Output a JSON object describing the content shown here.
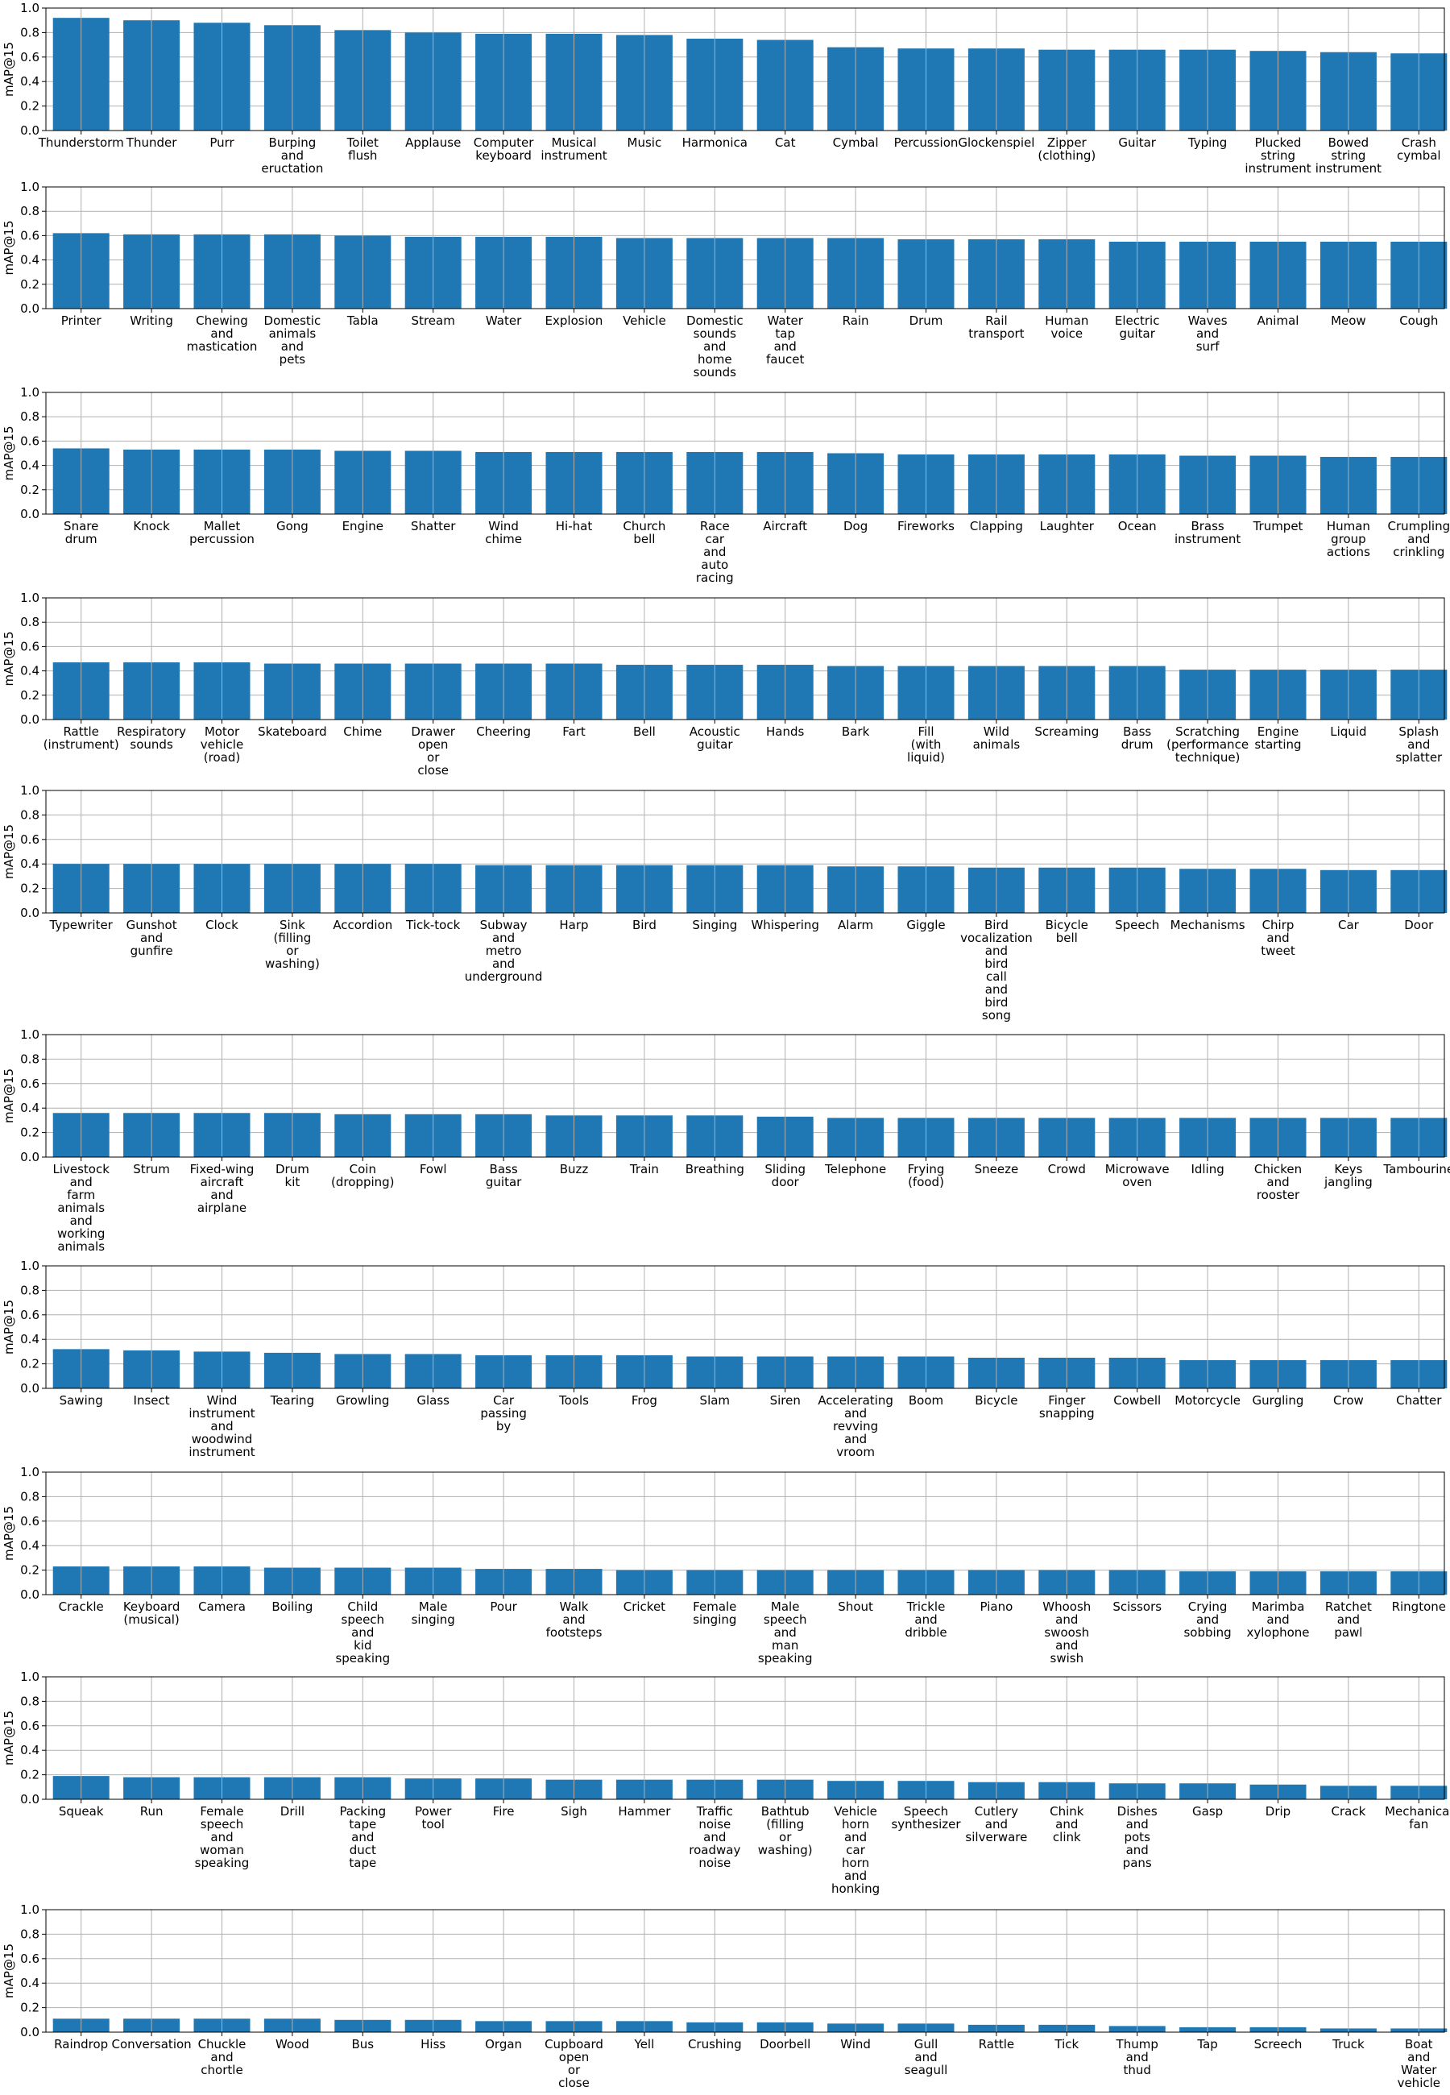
{
  "chart_data": [
    {
      "type": "bar",
      "ylabel": "mAP@15",
      "ylim": [
        0,
        1
      ],
      "yticks": [
        "0.0",
        "0.2",
        "0.4",
        "0.6",
        "0.8",
        "1.0"
      ],
      "grid": true,
      "categories": [
        "Thunderstorm",
        "Thunder",
        "Purr",
        "Burping\nand\neructation",
        "Toilet\nflush",
        "Applause",
        "Computer\nkeyboard",
        "Musical\ninstrument",
        "Music",
        "Harmonica",
        "Cat",
        "Cymbal",
        "Percussion",
        "Glockenspiel",
        "Zipper\n(clothing)",
        "Guitar",
        "Typing",
        "Plucked\nstring\ninstrument",
        "Bowed\nstring\ninstrument",
        "Crash\ncymbal"
      ],
      "values": [
        0.92,
        0.9,
        0.88,
        0.86,
        0.82,
        0.8,
        0.79,
        0.79,
        0.78,
        0.75,
        0.74,
        0.68,
        0.67,
        0.67,
        0.66,
        0.66,
        0.66,
        0.65,
        0.64,
        0.63
      ]
    },
    {
      "type": "bar",
      "ylabel": "mAP@15",
      "ylim": [
        0,
        1
      ],
      "yticks": [
        "0.0",
        "0.2",
        "0.4",
        "0.6",
        "0.8",
        "1.0"
      ],
      "grid": true,
      "categories": [
        "Printer",
        "Writing",
        "Chewing\nand\nmastication",
        "Domestic\nanimals\nand\npets",
        "Tabla",
        "Stream",
        "Water",
        "Explosion",
        "Vehicle",
        "Domestic\nsounds\nand\nhome\nsounds",
        "Water\ntap\nand\nfaucet",
        "Rain",
        "Drum",
        "Rail\ntransport",
        "Human\nvoice",
        "Electric\nguitar",
        "Waves\nand\nsurf",
        "Animal",
        "Meow",
        "Cough"
      ],
      "values": [
        0.62,
        0.61,
        0.61,
        0.61,
        0.6,
        0.59,
        0.59,
        0.59,
        0.58,
        0.58,
        0.58,
        0.58,
        0.57,
        0.57,
        0.57,
        0.55,
        0.55,
        0.55,
        0.55,
        0.55
      ]
    },
    {
      "type": "bar",
      "ylabel": "mAP@15",
      "ylim": [
        0,
        1
      ],
      "yticks": [
        "0.0",
        "0.2",
        "0.4",
        "0.6",
        "0.8",
        "1.0"
      ],
      "grid": true,
      "categories": [
        "Snare\ndrum",
        "Knock",
        "Mallet\npercussion",
        "Gong",
        "Engine",
        "Shatter",
        "Wind\nchime",
        "Hi-hat",
        "Church\nbell",
        "Race\ncar\nand\nauto\nracing",
        "Aircraft",
        "Dog",
        "Fireworks",
        "Clapping",
        "Laughter",
        "Ocean",
        "Brass\ninstrument",
        "Trumpet",
        "Human\ngroup\nactions",
        "Crumpling\nand\ncrinkling"
      ],
      "values": [
        0.54,
        0.53,
        0.53,
        0.53,
        0.52,
        0.52,
        0.51,
        0.51,
        0.51,
        0.51,
        0.51,
        0.5,
        0.49,
        0.49,
        0.49,
        0.49,
        0.48,
        0.48,
        0.47,
        0.47
      ]
    },
    {
      "type": "bar",
      "ylabel": "mAP@15",
      "ylim": [
        0,
        1
      ],
      "yticks": [
        "0.0",
        "0.2",
        "0.4",
        "0.6",
        "0.8",
        "1.0"
      ],
      "grid": true,
      "categories": [
        "Rattle\n(instrument)",
        "Respiratory\nsounds",
        "Motor\nvehicle\n(road)",
        "Skateboard",
        "Chime",
        "Drawer\nopen\nor\nclose",
        "Cheering",
        "Fart",
        "Bell",
        "Acoustic\nguitar",
        "Hands",
        "Bark",
        "Fill\n(with\nliquid)",
        "Wild\nanimals",
        "Screaming",
        "Bass\ndrum",
        "Scratching\n(performance\ntechnique)",
        "Engine\nstarting",
        "Liquid",
        "Splash\nand\nsplatter"
      ],
      "values": [
        0.47,
        0.47,
        0.47,
        0.46,
        0.46,
        0.46,
        0.46,
        0.46,
        0.45,
        0.45,
        0.45,
        0.44,
        0.44,
        0.44,
        0.44,
        0.44,
        0.41,
        0.41,
        0.41,
        0.41
      ]
    },
    {
      "type": "bar",
      "ylabel": "mAP@15",
      "ylim": [
        0,
        1
      ],
      "yticks": [
        "0.0",
        "0.2",
        "0.4",
        "0.6",
        "0.8",
        "1.0"
      ],
      "grid": true,
      "categories": [
        "Typewriter",
        "Gunshot\nand\ngunfire",
        "Clock",
        "Sink\n(filling\nor\nwashing)",
        "Accordion",
        "Tick-tock",
        "Subway\nand\nmetro\nand\nunderground",
        "Harp",
        "Bird",
        "Singing",
        "Whispering",
        "Alarm",
        "Giggle",
        "Bird\nvocalization\nand\nbird\ncall\nand\nbird\nsong",
        "Bicycle\nbell",
        "Speech",
        "Mechanisms",
        "Chirp\nand\ntweet",
        "Car",
        "Door"
      ],
      "values": [
        0.4,
        0.4,
        0.4,
        0.4,
        0.4,
        0.4,
        0.39,
        0.39,
        0.39,
        0.39,
        0.39,
        0.38,
        0.38,
        0.37,
        0.37,
        0.37,
        0.36,
        0.36,
        0.35,
        0.35
      ]
    },
    {
      "type": "bar",
      "ylabel": "mAP@15",
      "ylim": [
        0,
        1
      ],
      "yticks": [
        "0.0",
        "0.2",
        "0.4",
        "0.6",
        "0.8",
        "1.0"
      ],
      "grid": true,
      "categories": [
        "Livestock\nand\nfarm\nanimals\nand\nworking\nanimals",
        "Strum",
        "Fixed-wing\naircraft\nand\nairplane",
        "Drum\nkit",
        "Coin\n(dropping)",
        "Fowl",
        "Bass\nguitar",
        "Buzz",
        "Train",
        "Breathing",
        "Sliding\ndoor",
        "Telephone",
        "Frying\n(food)",
        "Sneeze",
        "Crowd",
        "Microwave\noven",
        "Idling",
        "Chicken\nand\nrooster",
        "Keys\njangling",
        "Tambourine"
      ],
      "values": [
        0.36,
        0.36,
        0.36,
        0.36,
        0.35,
        0.35,
        0.35,
        0.34,
        0.34,
        0.34,
        0.33,
        0.32,
        0.32,
        0.32,
        0.32,
        0.32,
        0.32,
        0.32,
        0.32,
        0.32
      ]
    },
    {
      "type": "bar",
      "ylabel": "mAP@15",
      "ylim": [
        0,
        1
      ],
      "yticks": [
        "0.0",
        "0.2",
        "0.4",
        "0.6",
        "0.8",
        "1.0"
      ],
      "grid": true,
      "categories": [
        "Sawing",
        "Insect",
        "Wind\ninstrument\nand\nwoodwind\ninstrument",
        "Tearing",
        "Growling",
        "Glass",
        "Car\npassing\nby",
        "Tools",
        "Frog",
        "Slam",
        "Siren",
        "Accelerating\nand\nrevving\nand\nvroom",
        "Boom",
        "Bicycle",
        "Finger\nsnapping",
        "Cowbell",
        "Motorcycle",
        "Gurgling",
        "Crow",
        "Chatter"
      ],
      "values": [
        0.32,
        0.31,
        0.3,
        0.29,
        0.28,
        0.28,
        0.27,
        0.27,
        0.27,
        0.26,
        0.26,
        0.26,
        0.26,
        0.25,
        0.25,
        0.25,
        0.23,
        0.23,
        0.23,
        0.23
      ]
    },
    {
      "type": "bar",
      "ylabel": "mAP@15",
      "ylim": [
        0,
        1
      ],
      "yticks": [
        "0.0",
        "0.2",
        "0.4",
        "0.6",
        "0.8",
        "1.0"
      ],
      "grid": true,
      "categories": [
        "Crackle",
        "Keyboard\n(musical)",
        "Camera",
        "Boiling",
        "Child\nspeech\nand\nkid\nspeaking",
        "Male\nsinging",
        "Pour",
        "Walk\nand\nfootsteps",
        "Cricket",
        "Female\nsinging",
        "Male\nspeech\nand\nman\nspeaking",
        "Shout",
        "Trickle\nand\ndribble",
        "Piano",
        "Whoosh\nand\nswoosh\nand\nswish",
        "Scissors",
        "Crying\nand\nsobbing",
        "Marimba\nand\nxylophone",
        "Ratchet\nand\npawl",
        "Ringtone"
      ],
      "values": [
        0.23,
        0.23,
        0.23,
        0.22,
        0.22,
        0.22,
        0.21,
        0.21,
        0.2,
        0.2,
        0.2,
        0.2,
        0.2,
        0.2,
        0.2,
        0.2,
        0.19,
        0.19,
        0.19,
        0.19
      ]
    },
    {
      "type": "bar",
      "ylabel": "mAP@15",
      "ylim": [
        0,
        1
      ],
      "yticks": [
        "0.0",
        "0.2",
        "0.4",
        "0.6",
        "0.8",
        "1.0"
      ],
      "grid": true,
      "categories": [
        "Squeak",
        "Run",
        "Female\nspeech\nand\nwoman\nspeaking",
        "Drill",
        "Packing\ntape\nand\nduct\ntape",
        "Power\ntool",
        "Fire",
        "Sigh",
        "Hammer",
        "Traffic\nnoise\nand\nroadway\nnoise",
        "Bathtub\n(filling\nor\nwashing)",
        "Vehicle\nhorn\nand\ncar\nhorn\nand\nhonking",
        "Speech\nsynthesizer",
        "Cutlery\nand\nsilverware",
        "Chink\nand\nclink",
        "Dishes\nand\npots\nand\npans",
        "Gasp",
        "Drip",
        "Crack",
        "Mechanical\nfan"
      ],
      "values": [
        0.19,
        0.18,
        0.18,
        0.18,
        0.18,
        0.17,
        0.17,
        0.16,
        0.16,
        0.16,
        0.16,
        0.15,
        0.15,
        0.14,
        0.14,
        0.13,
        0.13,
        0.12,
        0.11,
        0.11
      ]
    },
    {
      "type": "bar",
      "ylabel": "mAP@15",
      "ylim": [
        0,
        1
      ],
      "yticks": [
        "0.0",
        "0.2",
        "0.4",
        "0.6",
        "0.8",
        "1.0"
      ],
      "grid": true,
      "categories": [
        "Raindrop",
        "Conversation",
        "Chuckle\nand\nchortle",
        "Wood",
        "Bus",
        "Hiss",
        "Organ",
        "Cupboard\nopen\nor\nclose",
        "Yell",
        "Crushing",
        "Doorbell",
        "Wind",
        "Gull\nand\nseagull",
        "Rattle",
        "Tick",
        "Thump\nand\nthud",
        "Tap",
        "Screech",
        "Truck",
        "Boat\nand\nWater\nvehicle"
      ],
      "values": [
        0.11,
        0.11,
        0.11,
        0.11,
        0.1,
        0.1,
        0.09,
        0.09,
        0.09,
        0.08,
        0.08,
        0.07,
        0.07,
        0.06,
        0.06,
        0.05,
        0.04,
        0.04,
        0.03,
        0.03
      ]
    }
  ],
  "colors": {
    "bar": "#1f77b4",
    "grid": "#b0b0b0",
    "axis": "#000000"
  }
}
